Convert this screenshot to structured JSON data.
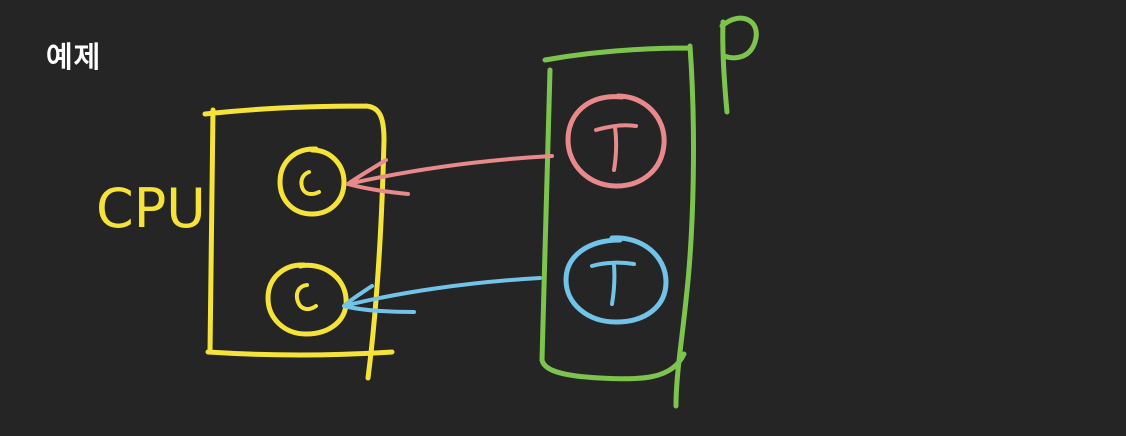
{
  "title": "예제",
  "colors": {
    "background": "#252526",
    "title": "#ffffff",
    "cpu": "#f5e33a",
    "process": "#7cc44e",
    "thread_top": "#e8898c",
    "thread_bottom": "#72c3e8"
  },
  "cpu": {
    "label": "CPU",
    "cores": [
      {
        "label": "C",
        "color": "#f5e33a"
      },
      {
        "label": "C",
        "color": "#f5e33a"
      }
    ]
  },
  "process": {
    "label": "P",
    "threads": [
      {
        "label": "T",
        "color": "#e8898c"
      },
      {
        "label": "T",
        "color": "#72c3e8"
      }
    ]
  },
  "arrows": [
    {
      "from": "thread-1",
      "to": "core-1",
      "color": "#e8898c"
    },
    {
      "from": "thread-2",
      "to": "core-2",
      "color": "#72c3e8"
    }
  ]
}
